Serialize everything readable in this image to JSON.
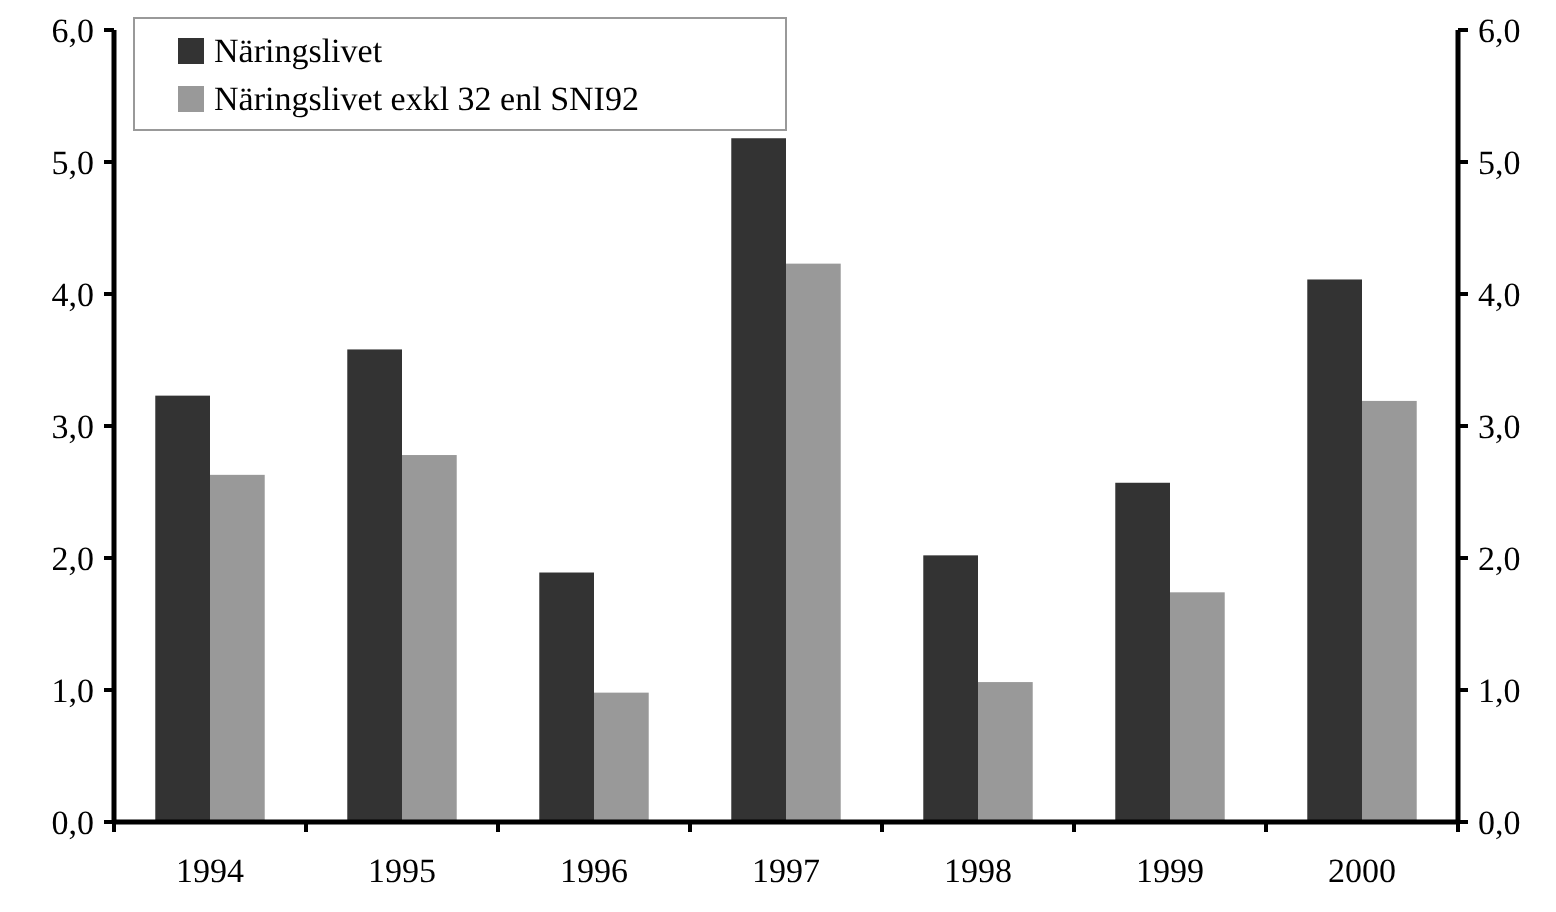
{
  "chart_data": {
    "type": "bar",
    "categories": [
      "1994",
      "1995",
      "1996",
      "1997",
      "1998",
      "1999",
      "2000"
    ],
    "series": [
      {
        "name": "Näringslivet",
        "color": "#333333",
        "values": [
          3.23,
          3.58,
          1.89,
          5.18,
          2.02,
          2.57,
          4.11
        ]
      },
      {
        "name": "Näringslivet exkl 32 enl SNI92",
        "color": "#999999",
        "values": [
          2.63,
          2.78,
          0.98,
          4.23,
          1.06,
          1.74,
          3.19
        ]
      }
    ],
    "ylim": [
      0,
      6
    ],
    "yticks": [
      {
        "value": 0,
        "label": "0,0"
      },
      {
        "value": 1,
        "label": "1,0"
      },
      {
        "value": 2,
        "label": "2,0"
      },
      {
        "value": 3,
        "label": "3,0"
      },
      {
        "value": 4,
        "label": "4,0"
      },
      {
        "value": 5,
        "label": "5,0"
      },
      {
        "value": 6,
        "label": "6,0"
      }
    ],
    "y2lim": [
      0,
      6
    ],
    "y2ticks": [
      {
        "value": 0,
        "label": "0,0"
      },
      {
        "value": 1,
        "label": "1,0"
      },
      {
        "value": 2,
        "label": "2,0"
      },
      {
        "value": 3,
        "label": "3,0"
      },
      {
        "value": 4,
        "label": "4,0"
      },
      {
        "value": 5,
        "label": "5,0"
      },
      {
        "value": 6,
        "label": "6,0"
      }
    ],
    "grid": false,
    "legend": "top left"
  }
}
